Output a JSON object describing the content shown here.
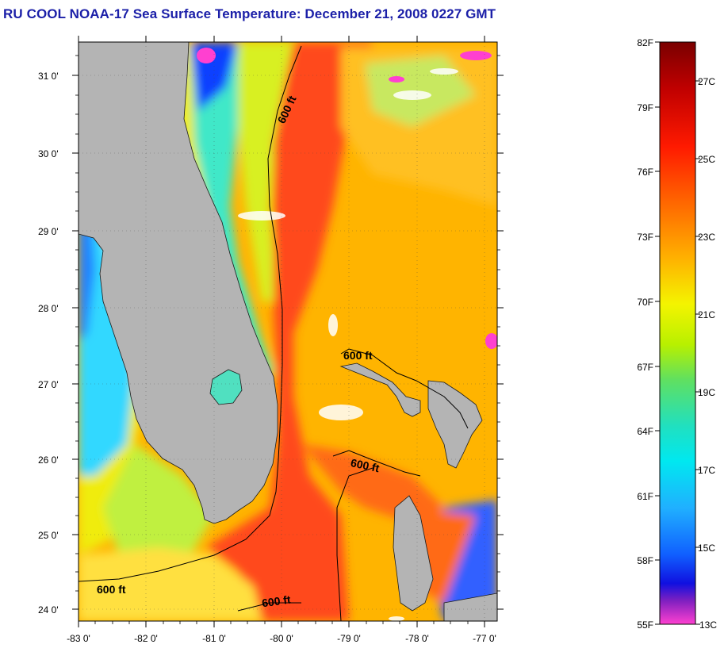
{
  "header": {
    "title": "RU COOL  NOAA-17  Sea Surface Temperature:  December 21, 2008 0227 GMT"
  },
  "map": {
    "lat_ticks": [
      "31 0'",
      "30 0'",
      "29 0'",
      "28 0'",
      "27 0'",
      "26 0'",
      "25 0'",
      "24 0'"
    ],
    "lon_ticks": [
      "-83 0'",
      "-82 0'",
      "-81 0'",
      "-80 0'",
      "-79 0'",
      "-78 0'",
      "-77 0'"
    ],
    "contours": [
      "600 ft",
      "600 ft",
      "600 ft",
      "600 ft",
      "600 ft"
    ]
  },
  "colorbar": {
    "fahrenheit": [
      "82F",
      "79F",
      "76F",
      "73F",
      "70F",
      "67F",
      "64F",
      "61F",
      "58F",
      "55F"
    ],
    "celsius": [
      "27C",
      "25C",
      "23C",
      "21C",
      "19C",
      "17C",
      "15C",
      "13C"
    ],
    "colors": [
      "#7a0000",
      "#c00000",
      "#ff1a00",
      "#ff6a00",
      "#ffb000",
      "#ffe000",
      "#f4f400",
      "#b8f000",
      "#60e060",
      "#20e0c0",
      "#00e8f0",
      "#20b0ff",
      "#1060ff",
      "#1010f0",
      "#8020c0",
      "#d030e0",
      "#ff40d0"
    ]
  },
  "colors": {
    "land": "#b4b4b4",
    "title": "#1b1fa8",
    "gulf_stream": "#ff4a1c",
    "shelf": "#ffd000",
    "coastal": "#40e0c0",
    "open_ocean": "#ffb400"
  }
}
